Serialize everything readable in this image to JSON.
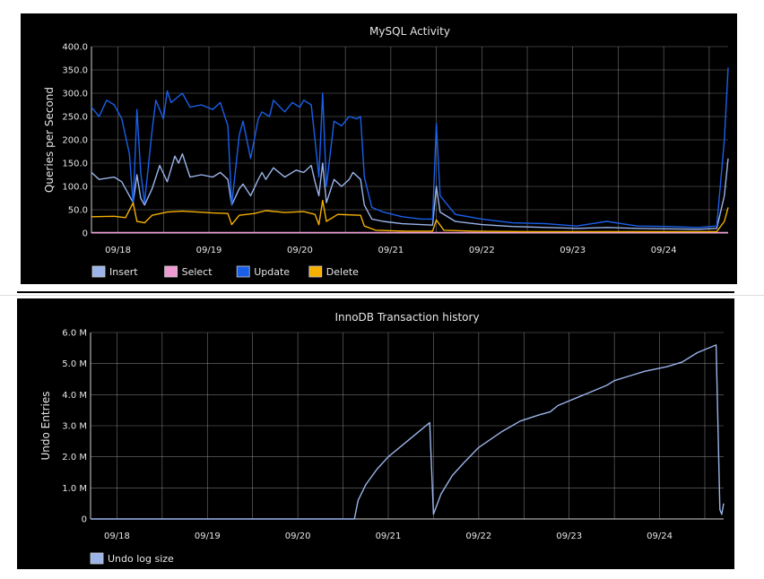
{
  "chart_data": [
    {
      "type": "line",
      "title": "MySQL Activity",
      "ylabel": "Queries per Second",
      "ylim": [
        0,
        400
      ],
      "yticks": [
        "0",
        "50.0",
        "100.0",
        "150.0",
        "200.0",
        "250.0",
        "300.0",
        "350.0",
        "400.0"
      ],
      "xlim": [
        "09/17 17:00",
        "09/24 17:00"
      ],
      "xticks": [
        "09/18",
        "09/19",
        "09/20",
        "09/21",
        "09/22",
        "09/23",
        "09/24"
      ],
      "grid": true,
      "legend": "bottom-left",
      "series": [
        {
          "name": "Insert",
          "color": "#9ab4ea",
          "points": [
            [
              "09/17 17:00",
              130
            ],
            [
              "09/17 19:00",
              115
            ],
            [
              "09/17 23:00",
              120
            ],
            [
              "09/18 01:00",
              110
            ],
            [
              "09/18 03:00",
              80
            ],
            [
              "09/18 04:00",
              65
            ],
            [
              "09/18 05:00",
              125
            ],
            [
              "09/18 06:00",
              75
            ],
            [
              "09/18 07:00",
              60
            ],
            [
              "09/18 09:00",
              95
            ],
            [
              "09/18 11:00",
              145
            ],
            [
              "09/18 13:00",
              110
            ],
            [
              "09/18 15:00",
              165
            ],
            [
              "09/18 16:00",
              150
            ],
            [
              "09/18 17:00",
              170
            ],
            [
              "09/18 19:00",
              120
            ],
            [
              "09/18 22:00",
              125
            ],
            [
              "09/19 01:00",
              120
            ],
            [
              "09/19 03:00",
              130
            ],
            [
              "09/19 05:00",
              115
            ],
            [
              "09/19 06:00",
              60
            ],
            [
              "09/19 08:00",
              95
            ],
            [
              "09/19 09:00",
              105
            ],
            [
              "09/19 11:00",
              80
            ],
            [
              "09/19 13:00",
              115
            ],
            [
              "09/19 14:00",
              130
            ],
            [
              "09/19 15:00",
              115
            ],
            [
              "09/19 17:00",
              140
            ],
            [
              "09/19 20:00",
              120
            ],
            [
              "09/19 23:00",
              135
            ],
            [
              "09/20 01:00",
              130
            ],
            [
              "09/20 03:00",
              145
            ],
            [
              "09/20 04:00",
              110
            ],
            [
              "09/20 05:00",
              80
            ],
            [
              "09/20 06:00",
              150
            ],
            [
              "09/20 07:00",
              65
            ],
            [
              "09/20 09:00",
              115
            ],
            [
              "09/20 11:00",
              100
            ],
            [
              "09/20 13:00",
              115
            ],
            [
              "09/20 14:00",
              130
            ],
            [
              "09/20 16:00",
              115
            ],
            [
              "09/20 17:00",
              60
            ],
            [
              "09/20 19:00",
              30
            ],
            [
              "09/20 22:00",
              25
            ],
            [
              "09/21 03:00",
              20
            ],
            [
              "09/21 08:00",
              18
            ],
            [
              "09/21 11:00",
              17
            ],
            [
              "09/21 12:00",
              100
            ],
            [
              "09/21 13:00",
              45
            ],
            [
              "09/21 17:00",
              25
            ],
            [
              "09/22 00:00",
              18
            ],
            [
              "09/22 08:00",
              14
            ],
            [
              "09/22 17:00",
              12
            ],
            [
              "09/23 01:00",
              10
            ],
            [
              "09/23 09:00",
              12
            ],
            [
              "09/23 17:00",
              10
            ],
            [
              "09/24 01:00",
              9
            ],
            [
              "09/24 09:00",
              8
            ],
            [
              "09/24 14:00",
              10
            ],
            [
              "09/24 16:00",
              80
            ],
            [
              "09/24 17:00",
              160
            ]
          ]
        },
        {
          "name": "Select",
          "color": "#f09ad4",
          "points": [
            [
              "09/17 17:00",
              1
            ],
            [
              "09/24 17:00",
              1
            ]
          ]
        },
        {
          "name": "Update",
          "color": "#1a5fea",
          "points": [
            [
              "09/17 17:00",
              270
            ],
            [
              "09/17 19:00",
              250
            ],
            [
              "09/17 21:00",
              285
            ],
            [
              "09/17 23:00",
              275
            ],
            [
              "09/18 01:00",
              245
            ],
            [
              "09/18 03:00",
              170
            ],
            [
              "09/18 04:00",
              60
            ],
            [
              "09/18 05:00",
              265
            ],
            [
              "09/18 06:00",
              130
            ],
            [
              "09/18 07:00",
              65
            ],
            [
              "09/18 09:00",
              220
            ],
            [
              "09/18 10:00",
              285
            ],
            [
              "09/18 12:00",
              245
            ],
            [
              "09/18 13:00",
              305
            ],
            [
              "09/18 14:00",
              280
            ],
            [
              "09/18 17:00",
              300
            ],
            [
              "09/18 19:00",
              270
            ],
            [
              "09/18 22:00",
              275
            ],
            [
              "09/19 01:00",
              265
            ],
            [
              "09/19 03:00",
              280
            ],
            [
              "09/19 05:00",
              230
            ],
            [
              "09/19 06:00",
              60
            ],
            [
              "09/19 08:00",
              210
            ],
            [
              "09/19 09:00",
              240
            ],
            [
              "09/19 11:00",
              160
            ],
            [
              "09/19 13:00",
              245
            ],
            [
              "09/19 14:00",
              260
            ],
            [
              "09/19 16:00",
              250
            ],
            [
              "09/19 17:00",
              285
            ],
            [
              "09/19 20:00",
              260
            ],
            [
              "09/19 22:00",
              280
            ],
            [
              "09/20 00:00",
              270
            ],
            [
              "09/20 01:00",
              285
            ],
            [
              "09/20 03:00",
              275
            ],
            [
              "09/20 04:00",
              200
            ],
            [
              "09/20 05:00",
              120
            ],
            [
              "09/20 06:00",
              300
            ],
            [
              "09/20 07:00",
              100
            ],
            [
              "09/20 09:00",
              240
            ],
            [
              "09/20 11:00",
              230
            ],
            [
              "09/20 13:00",
              250
            ],
            [
              "09/20 15:00",
              245
            ],
            [
              "09/20 16:00",
              250
            ],
            [
              "09/20 17:00",
              120
            ],
            [
              "09/20 19:00",
              55
            ],
            [
              "09/20 22:00",
              45
            ],
            [
              "09/21 03:00",
              35
            ],
            [
              "09/21 08:00",
              30
            ],
            [
              "09/21 11:00",
              30
            ],
            [
              "09/21 12:00",
              235
            ],
            [
              "09/21 13:00",
              80
            ],
            [
              "09/21 17:00",
              40
            ],
            [
              "09/22 00:00",
              30
            ],
            [
              "09/22 08:00",
              22
            ],
            [
              "09/22 17:00",
              20
            ],
            [
              "09/23 01:00",
              15
            ],
            [
              "09/23 09:00",
              25
            ],
            [
              "09/23 17:00",
              15
            ],
            [
              "09/24 01:00",
              14
            ],
            [
              "09/24 09:00",
              12
            ],
            [
              "09/24 14:00",
              15
            ],
            [
              "09/24 16:00",
              200
            ],
            [
              "09/24 17:00",
              355
            ]
          ]
        },
        {
          "name": "Delete",
          "color": "#f5b000",
          "points": [
            [
              "09/17 17:00",
              35
            ],
            [
              "09/17 23:00",
              36
            ],
            [
              "09/18 02:00",
              33
            ],
            [
              "09/18 04:00",
              65
            ],
            [
              "09/18 05:00",
              25
            ],
            [
              "09/18 07:00",
              22
            ],
            [
              "09/18 09:00",
              38
            ],
            [
              "09/18 13:00",
              45
            ],
            [
              "09/18 17:00",
              47
            ],
            [
              "09/19 01:00",
              43
            ],
            [
              "09/19 05:00",
              42
            ],
            [
              "09/19 06:00",
              18
            ],
            [
              "09/19 08:00",
              38
            ],
            [
              "09/19 12:00",
              42
            ],
            [
              "09/19 15:00",
              48
            ],
            [
              "09/19 20:00",
              44
            ],
            [
              "09/20 01:00",
              46
            ],
            [
              "09/20 04:00",
              40
            ],
            [
              "09/20 05:00",
              18
            ],
            [
              "09/20 06:00",
              70
            ],
            [
              "09/20 07:00",
              25
            ],
            [
              "09/20 10:00",
              40
            ],
            [
              "09/20 16:00",
              38
            ],
            [
              "09/20 17:00",
              15
            ],
            [
              "09/20 20:00",
              6
            ],
            [
              "09/21 04:00",
              4
            ],
            [
              "09/21 11:00",
              4
            ],
            [
              "09/21 12:00",
              28
            ],
            [
              "09/21 14:00",
              6
            ],
            [
              "09/21 22:00",
              4
            ],
            [
              "09/22 12:00",
              3
            ],
            [
              "09/23 06:00",
              3
            ],
            [
              "09/24 00:00",
              3
            ],
            [
              "09/24 14:00",
              3
            ],
            [
              "09/24 16:00",
              25
            ],
            [
              "09/24 17:00",
              55
            ]
          ]
        }
      ]
    },
    {
      "type": "line",
      "title": "InnoDB Transaction history",
      "ylabel": "Undo Entries",
      "ylim": [
        0,
        6000000
      ],
      "yticks": [
        "0",
        "1.0 M",
        "2.0 M",
        "3.0 M",
        "4.0 M",
        "5.0 M",
        "6.0 M"
      ],
      "xlim": [
        "09/17 17:00",
        "09/24 17:00"
      ],
      "xticks": [
        "09/18",
        "09/19",
        "09/20",
        "09/21",
        "09/22",
        "09/23",
        "09/24"
      ],
      "grid": true,
      "legend": "bottom-left",
      "series": [
        {
          "name": "Undo log size",
          "color": "#9ab4ea",
          "points": [
            [
              "09/17 17:00",
              0
            ],
            [
              "09/20 15:00",
              0
            ],
            [
              "09/20 16:00",
              600000
            ],
            [
              "09/20 18:00",
              1100000
            ],
            [
              "09/20 21:00",
              1600000
            ],
            [
              "09/21 00:00",
              2000000
            ],
            [
              "09/21 04:00",
              2400000
            ],
            [
              "09/21 08:00",
              2800000
            ],
            [
              "09/21 11:00",
              3100000
            ],
            [
              "09/21 12:00",
              150000
            ],
            [
              "09/21 14:00",
              800000
            ],
            [
              "09/21 17:00",
              1400000
            ],
            [
              "09/21 20:00",
              1800000
            ],
            [
              "09/22 00:00",
              2300000
            ],
            [
              "09/22 06:00",
              2800000
            ],
            [
              "09/22 11:00",
              3150000
            ],
            [
              "09/22 16:00",
              3350000
            ],
            [
              "09/22 19:00",
              3450000
            ],
            [
              "09/22 21:00",
              3650000
            ],
            [
              "09/23 02:00",
              3900000
            ],
            [
              "09/23 05:00",
              4050000
            ],
            [
              "09/23 10:00",
              4300000
            ],
            [
              "09/23 12:00",
              4450000
            ],
            [
              "09/23 16:00",
              4600000
            ],
            [
              "09/23 20:00",
              4750000
            ],
            [
              "09/24 02:00",
              4900000
            ],
            [
              "09/24 06:00",
              5050000
            ],
            [
              "09/24 10:00",
              5350000
            ],
            [
              "09/24 14:00",
              5550000
            ],
            [
              "09/24 15:00",
              5600000
            ],
            [
              "09/24 16:00",
              300000
            ],
            [
              "09/24 16:30",
              150000
            ],
            [
              "09/24 17:00",
              500000
            ]
          ]
        }
      ]
    }
  ]
}
